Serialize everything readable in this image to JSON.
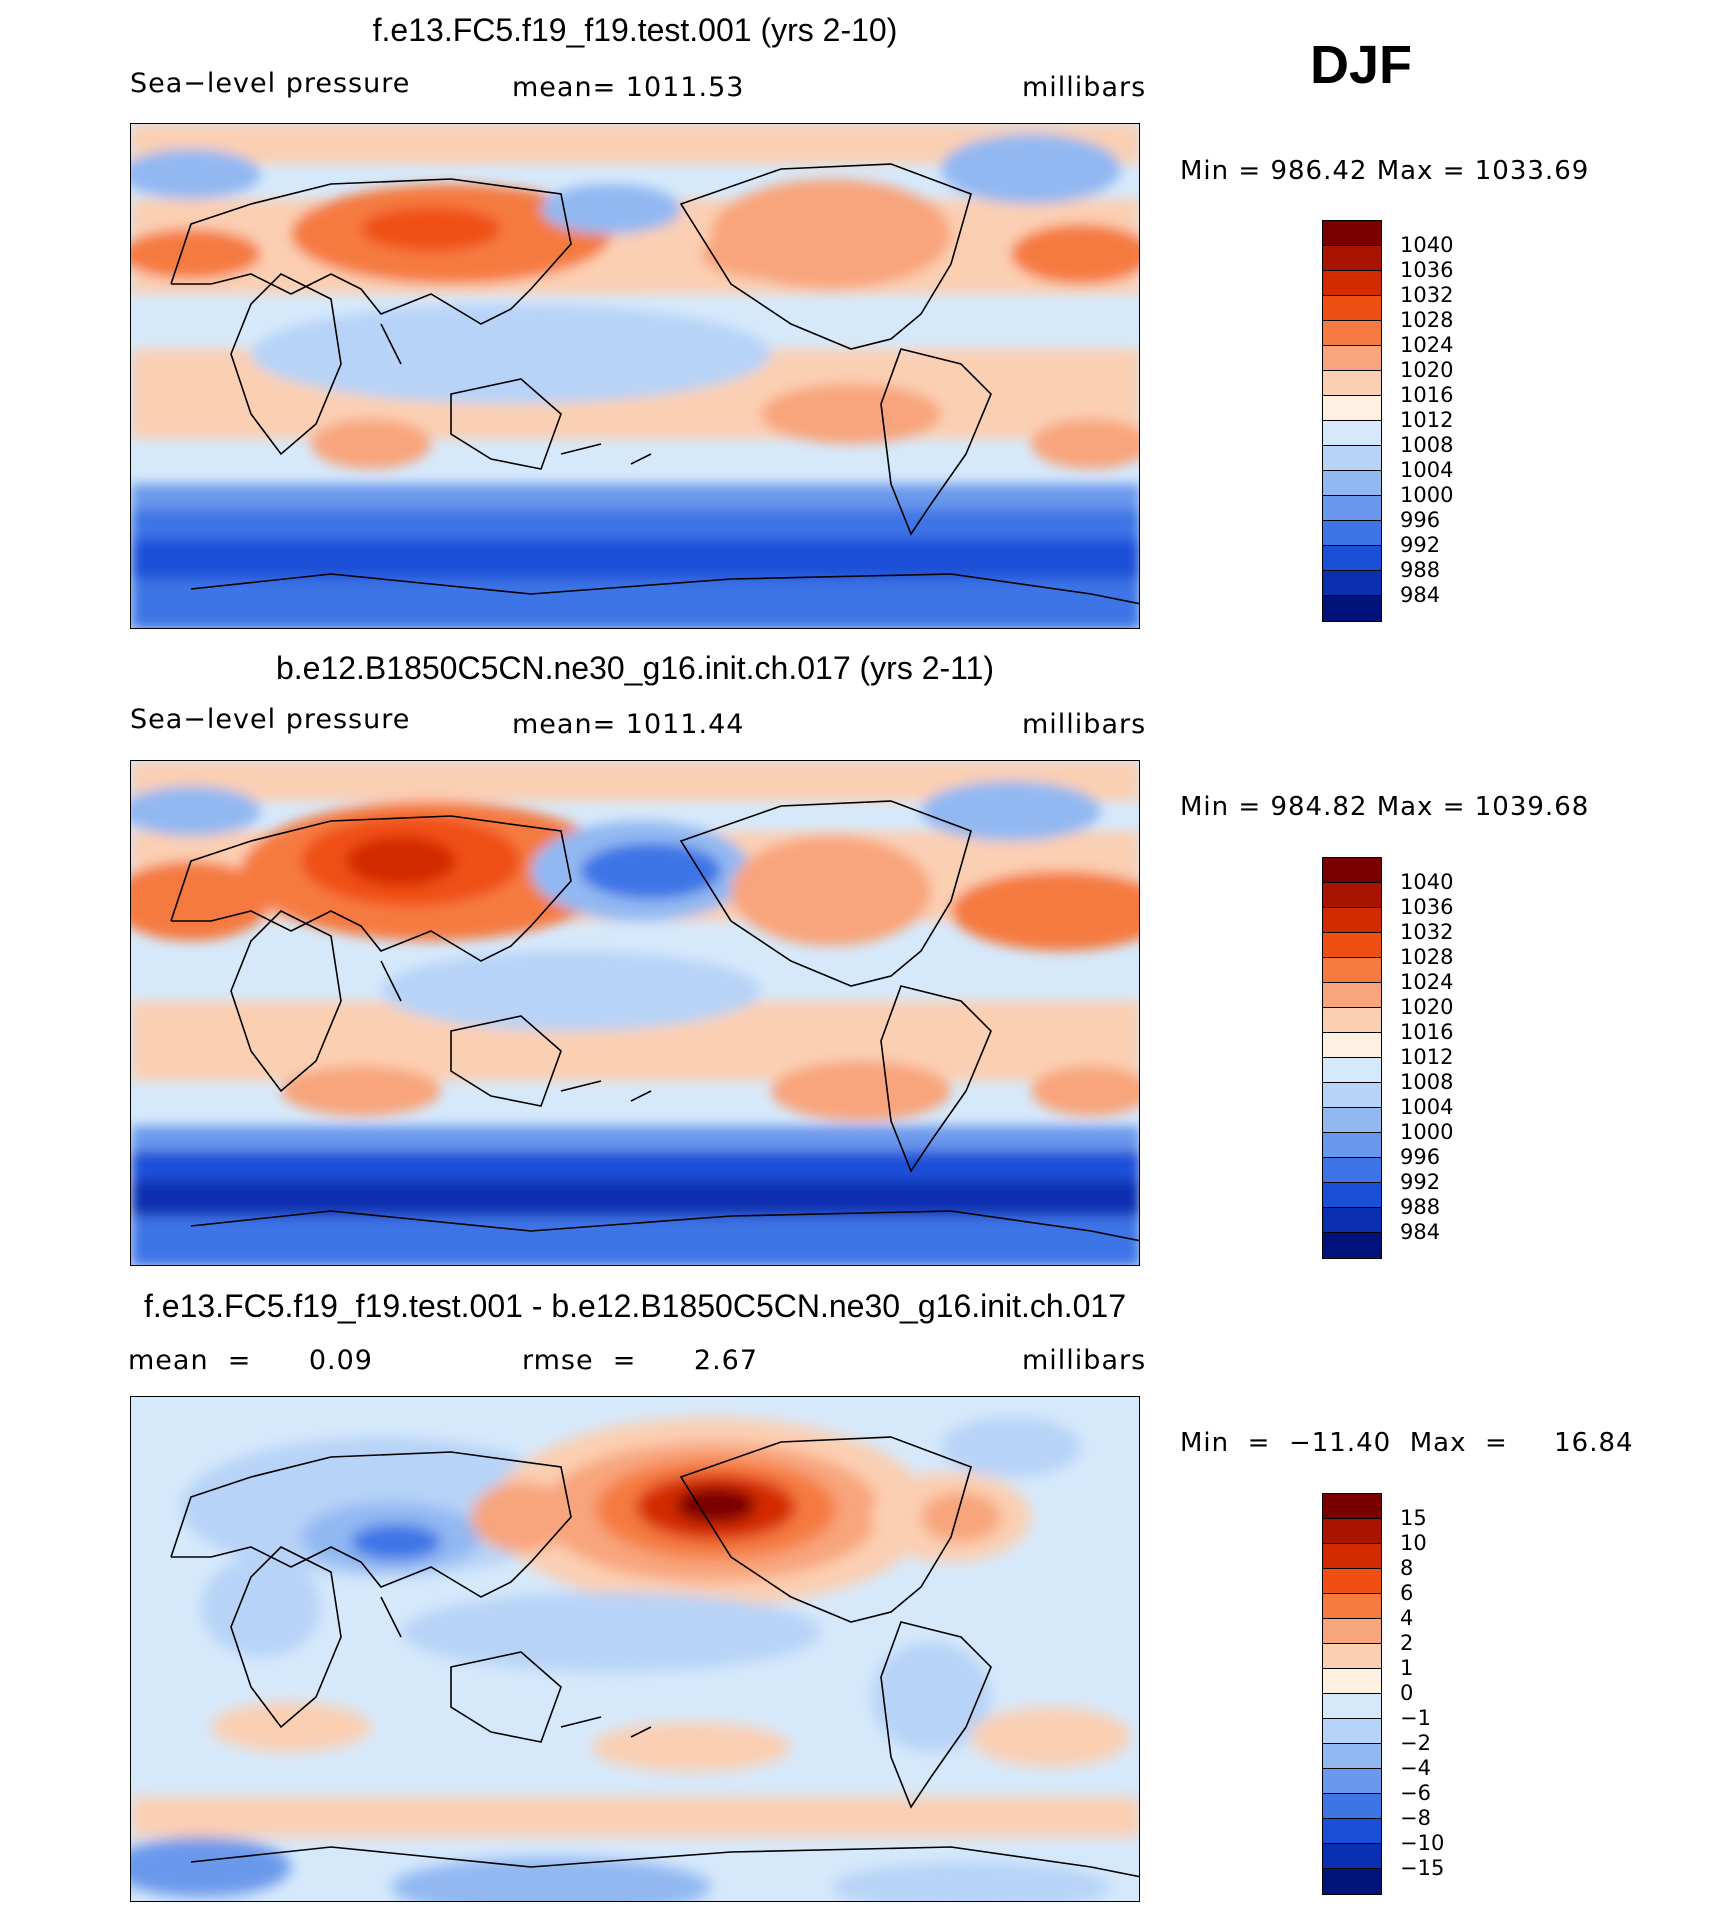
{
  "season": "DJF",
  "chart_data": [
    {
      "type": "heatmap",
      "title": "f.e13.FC5.f19_f19.test.001 (yrs 2-10)",
      "variable": "Sea−level pressure",
      "stat_label": "mean=  1011.53",
      "units": "millibars",
      "minmax": "Min  =  986.42  Max  =  1033.69",
      "min": 986.42,
      "max": 1033.69,
      "mean": 1011.53,
      "levels": [
        "1040",
        "1036",
        "1032",
        "1028",
        "1024",
        "1020",
        "1016",
        "1012",
        "1008",
        "1004",
        "1000",
        "996",
        "992",
        "988",
        "984"
      ],
      "colors": [
        "#7a0000",
        "#a81400",
        "#d42a00",
        "#f04f14",
        "#f57a40",
        "#f8a47c",
        "#fbcfb2",
        "#fff0e2",
        "#d6e9fb",
        "#b7d3f7",
        "#92b8f2",
        "#6a98ec",
        "#3d74e6",
        "#1a4fd8",
        "#0a2fb0",
        "#00137a"
      ]
    },
    {
      "type": "heatmap",
      "title": "b.e12.B1850C5CN.ne30_g16.init.ch.017 (yrs 2-11)",
      "variable": "Sea−level pressure",
      "stat_label": "mean=  1011.44",
      "units": "millibars",
      "minmax": "Min  =  984.82  Max  =  1039.68",
      "min": 984.82,
      "max": 1039.68,
      "mean": 1011.44,
      "levels": [
        "1040",
        "1036",
        "1032",
        "1028",
        "1024",
        "1020",
        "1016",
        "1012",
        "1008",
        "1004",
        "1000",
        "996",
        "992",
        "988",
        "984"
      ],
      "colors": [
        "#7a0000",
        "#a81400",
        "#d42a00",
        "#f04f14",
        "#f57a40",
        "#f8a47c",
        "#fbcfb2",
        "#fff0e2",
        "#d6e9fb",
        "#b7d3f7",
        "#92b8f2",
        "#6a98ec",
        "#3d74e6",
        "#1a4fd8",
        "#0a2fb0",
        "#00137a"
      ]
    },
    {
      "type": "heatmap",
      "title": "f.e13.FC5.f19_f19.test.001 - b.e12.B1850C5CN.ne30_g16.init.ch.017",
      "stat_label": "mean  =      0.09",
      "stat_label_2": "rmse  =      2.67",
      "units": "millibars",
      "minmax": "Min  =  −11.40  Max  =     16.84",
      "min": -11.4,
      "max": 16.84,
      "mean": 0.09,
      "rmse": 2.67,
      "levels": [
        "15",
        "10",
        "8",
        "6",
        "4",
        "2",
        "1",
        "0",
        "−1",
        "−2",
        "−4",
        "−6",
        "−8",
        "−10",
        "−15"
      ],
      "colors": [
        "#7a0000",
        "#a81400",
        "#d42a00",
        "#f04f14",
        "#f57a40",
        "#f8a47c",
        "#fbcfb2",
        "#fff0e2",
        "#d6e9fb",
        "#b7d3f7",
        "#92b8f2",
        "#6a98ec",
        "#3d74e6",
        "#1a4fd8",
        "#0a2fb0",
        "#00137a"
      ]
    }
  ]
}
